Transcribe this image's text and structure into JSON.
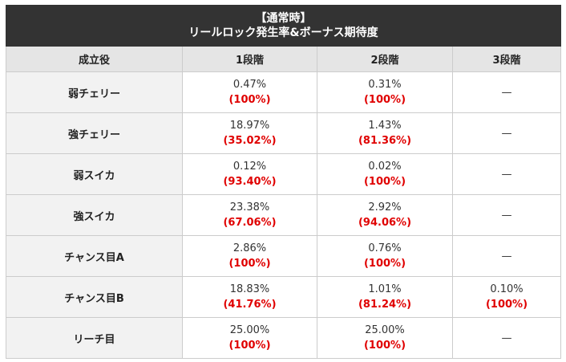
{
  "title": {
    "line1": "【通常時】",
    "line2": "リールロック発生率&ボーナス期待度"
  },
  "headers": [
    "成立役",
    "1段階",
    "2段階",
    "3段階"
  ],
  "rows": [
    {
      "role": "弱チェリー",
      "s1": {
        "rate": "0.47%",
        "pct": "(100%)"
      },
      "s2": {
        "rate": "0.31%",
        "pct": "(100%)"
      },
      "s3": {
        "dash": "—"
      }
    },
    {
      "role": "強チェリー",
      "s1": {
        "rate": "18.97%",
        "pct": "(35.02%)"
      },
      "s2": {
        "rate": "1.43%",
        "pct": "(81.36%)"
      },
      "s3": {
        "dash": "—"
      }
    },
    {
      "role": "弱スイカ",
      "s1": {
        "rate": "0.12%",
        "pct": "(93.40%)"
      },
      "s2": {
        "rate": "0.02%",
        "pct": "(100%)"
      },
      "s3": {
        "dash": "—"
      }
    },
    {
      "role": "強スイカ",
      "s1": {
        "rate": "23.38%",
        "pct": "(67.06%)"
      },
      "s2": {
        "rate": "2.92%",
        "pct": "(94.06%)"
      },
      "s3": {
        "dash": "—"
      }
    },
    {
      "role": "チャンス目A",
      "s1": {
        "rate": "2.86%",
        "pct": "(100%)"
      },
      "s2": {
        "rate": "0.76%",
        "pct": "(100%)"
      },
      "s3": {
        "dash": "—"
      }
    },
    {
      "role": "チャンス目B",
      "s1": {
        "rate": "18.83%",
        "pct": "(41.76%)"
      },
      "s2": {
        "rate": "1.01%",
        "pct": "(81.24%)"
      },
      "s3": {
        "rate": "0.10%",
        "pct": "(100%)"
      }
    },
    {
      "role": "リーチ目",
      "s1": {
        "rate": "25.00%",
        "pct": "(100%)"
      },
      "s2": {
        "rate": "25.00%",
        "pct": "(100%)"
      },
      "s3": {
        "dash": "—"
      }
    }
  ],
  "colors": {
    "title_bg": "#333333",
    "header_bg": "#e5e5e5",
    "role_bg": "#f2f2f2",
    "highlight_red": "#e00000"
  }
}
